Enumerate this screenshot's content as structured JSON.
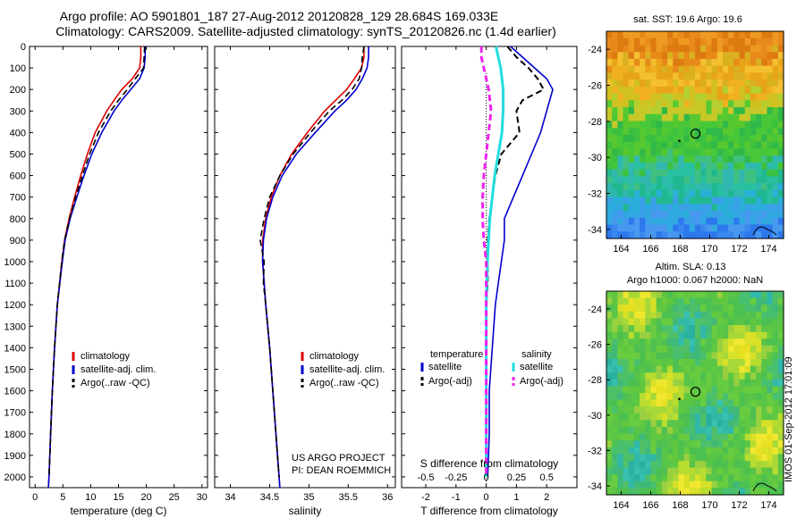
{
  "header": {
    "title_line1": "Argo profile: AO 5901801_187 27-Aug-2012 20120828_129 28.684S 169.033E",
    "title_line2": "Climatology: CARS2009. Satellite-adjusted climatology: synTS_20120826.nc (1.4d earlier)"
  },
  "side_label": "IMOS 01-Sep-2012 17:01:09",
  "colors": {
    "clim": "#dd0000",
    "sat": "#0000cc",
    "argo": "#000000",
    "sal_sat": "#22dddd",
    "sal_argo": "#ee22ee"
  },
  "chart_data": [
    {
      "type": "line",
      "panel": "temperature",
      "xlabel": "temperature (deg C)",
      "ylabel": "",
      "xlim": [
        -1,
        31
      ],
      "ylim": [
        2050,
        0
      ],
      "xticks": [
        0,
        5,
        10,
        15,
        20,
        25,
        30
      ],
      "yticks": [
        0,
        100,
        200,
        300,
        400,
        500,
        600,
        700,
        800,
        900,
        1000,
        1100,
        1200,
        1300,
        1400,
        1500,
        1600,
        1700,
        1800,
        1900,
        2000
      ],
      "legend": {
        "placement": "lower-center",
        "entries": [
          "climatology",
          "satellite-adj. clim.",
          "Argo(..raw -QC)"
        ]
      },
      "series": [
        {
          "name": "climatology",
          "y": [
            0,
            50,
            100,
            150,
            200,
            250,
            300,
            400,
            500,
            600,
            700,
            800,
            900,
            1000,
            1200,
            1400,
            1600,
            1800,
            2000,
            2050
          ],
          "values": [
            19.0,
            19.0,
            18.8,
            17.5,
            15.6,
            14.2,
            12.9,
            10.8,
            9.4,
            8.2,
            7.1,
            6.1,
            5.3,
            4.8,
            4.0,
            3.5,
            3.1,
            2.8,
            2.5,
            2.4
          ]
        },
        {
          "name": "satellite-adj. clim.",
          "y": [
            0,
            50,
            100,
            150,
            200,
            250,
            300,
            400,
            500,
            600,
            700,
            800,
            900,
            1000,
            1200,
            1400,
            1600,
            1800,
            2000,
            2050
          ],
          "values": [
            19.8,
            19.8,
            19.6,
            18.8,
            17.2,
            15.6,
            14.2,
            12.0,
            10.2,
            8.8,
            7.5,
            6.3,
            5.4,
            4.9,
            4.0,
            3.5,
            3.1,
            2.8,
            2.5,
            2.4
          ]
        },
        {
          "name": "Argo(..raw -QC)",
          "y": [
            0,
            50,
            100,
            150,
            200,
            250,
            300,
            400,
            500,
            600,
            700,
            800,
            900,
            1000,
            1200,
            1400,
            1600,
            1800,
            2000
          ],
          "values": [
            19.7,
            19.6,
            19.5,
            18.0,
            16.6,
            15.0,
            13.6,
            11.4,
            9.8,
            8.5,
            7.3,
            6.2,
            5.3,
            4.8,
            4.0,
            3.5,
            3.1,
            2.8,
            2.5
          ]
        }
      ]
    },
    {
      "type": "line",
      "panel": "salinity",
      "xlabel": "salinity",
      "ylabel": "",
      "xlim": [
        33.8,
        36.1
      ],
      "ylim": [
        2050,
        0
      ],
      "xticks": [
        34,
        34.5,
        35,
        35.5,
        36
      ],
      "annotation": [
        "US ARGO PROJECT",
        "PI: DEAN ROEMMICH"
      ],
      "legend": {
        "placement": "lower-center",
        "entries": [
          "climatology",
          "satellite-adj. clim.",
          "Argo(..raw -QC)"
        ]
      },
      "series": [
        {
          "name": "climatology",
          "y": [
            0,
            50,
            100,
            150,
            200,
            250,
            300,
            400,
            500,
            600,
            700,
            800,
            900,
            1000,
            1200,
            1400,
            1600,
            1800,
            2000,
            2050
          ],
          "values": [
            35.7,
            35.7,
            35.67,
            35.58,
            35.48,
            35.34,
            35.2,
            34.98,
            34.78,
            34.63,
            34.52,
            34.45,
            34.41,
            34.41,
            34.45,
            34.5,
            34.54,
            34.58,
            34.62,
            34.63
          ]
        },
        {
          "name": "satellite-adj. clim.",
          "y": [
            0,
            50,
            100,
            150,
            200,
            250,
            300,
            400,
            500,
            600,
            700,
            800,
            900,
            1000,
            1200,
            1400,
            1600,
            1800,
            2000,
            2050
          ],
          "values": [
            35.76,
            35.76,
            35.74,
            35.68,
            35.6,
            35.48,
            35.33,
            35.08,
            34.84,
            34.66,
            34.54,
            34.46,
            34.42,
            34.41,
            34.45,
            34.5,
            34.54,
            34.58,
            34.62,
            34.63
          ]
        },
        {
          "name": "Argo(..raw -QC)",
          "y": [
            0,
            50,
            100,
            150,
            200,
            250,
            300,
            400,
            500,
            600,
            700,
            800,
            900,
            1000,
            1100,
            1200,
            1400,
            1600,
            1800,
            2000
          ],
          "values": [
            35.7,
            35.68,
            35.67,
            35.64,
            35.55,
            35.42,
            35.26,
            35.02,
            34.8,
            34.63,
            34.5,
            34.43,
            34.38,
            34.43,
            34.42,
            34.45,
            34.5,
            34.54,
            34.58,
            34.62
          ]
        }
      ]
    },
    {
      "type": "line",
      "panel": "difference",
      "xlabel": "T difference from climatology",
      "xlabel_top": "S difference from climatology",
      "xlim": [
        -2.8,
        3.0
      ],
      "ylim": [
        2050,
        0
      ],
      "xticks": [
        -2,
        -1,
        0,
        1,
        2
      ],
      "sticks": [
        -0.5,
        -0.25,
        0,
        0.25,
        0.5
      ],
      "legend": {
        "placement": "lower-center",
        "temperature_title": "temperature",
        "salinity_title": "salinity",
        "entries": [
          "satellite",
          "Argo(-adj)",
          "satellite",
          "Argo(-adj)"
        ]
      },
      "series": [
        {
          "name": "temperature satellite",
          "y": [
            0,
            50,
            100,
            150,
            200,
            250,
            300,
            400,
            500,
            600,
            700,
            800,
            900,
            1000,
            1100,
            1200,
            1400,
            1600,
            1800,
            2000
          ],
          "values": [
            0.8,
            1.2,
            1.6,
            2.0,
            2.2,
            2.1,
            2.0,
            1.8,
            1.5,
            1.2,
            0.9,
            0.6,
            0.6,
            0.5,
            0.4,
            0.3,
            0.2,
            0.1,
            0.1,
            0.05
          ]
        },
        {
          "name": "temperature Argo(-adj)",
          "y": [
            0,
            50,
            100,
            150,
            200,
            250,
            300,
            400,
            500,
            600,
            700,
            800,
            900,
            1000,
            1100,
            1200,
            1400,
            1600,
            1800,
            2000
          ],
          "values": [
            0.7,
            1.0,
            1.4,
            1.7,
            1.9,
            1.2,
            1.0,
            1.1,
            0.5,
            0.3,
            0.2,
            0.1,
            0.05,
            0.05,
            0.05,
            0.0,
            0.0,
            0.0,
            0.0,
            0.0
          ]
        },
        {
          "name": "salinity satellite",
          "y": [
            0,
            50,
            100,
            150,
            200,
            250,
            300,
            400,
            500,
            600,
            700,
            800,
            900,
            1000,
            1200,
            1400,
            1600,
            1800,
            2000
          ],
          "values": [
            0.08,
            0.1,
            0.12,
            0.13,
            0.14,
            0.14,
            0.14,
            0.13,
            0.1,
            0.07,
            0.05,
            0.03,
            0.02,
            0.01,
            0.0,
            0.0,
            0.0,
            0.0,
            0.0
          ]
        },
        {
          "name": "salinity Argo(-adj)",
          "y": [
            0,
            50,
            100,
            150,
            200,
            250,
            300,
            400,
            500,
            600,
            700,
            800,
            900,
            1000,
            1200,
            1400,
            1600,
            1800,
            2000
          ],
          "values": [
            -0.04,
            -0.04,
            -0.02,
            0.0,
            0.02,
            0.03,
            0.04,
            0.02,
            0.0,
            -0.02,
            -0.03,
            -0.03,
            -0.02,
            0.0,
            0.0,
            0.0,
            0.0,
            0.0,
            0.0
          ]
        }
      ]
    },
    {
      "type": "heatmap",
      "panel": "sst-map",
      "title": "sat. SST: 19.6 Argo: 19.6",
      "xlim": [
        163,
        175
      ],
      "ylim": [
        -34.5,
        -23
      ],
      "xticks": [
        164,
        166,
        168,
        170,
        172,
        174
      ],
      "yticks": [
        -24,
        -26,
        -28,
        -30,
        -32,
        -34
      ],
      "argo_position": {
        "lon": 169.033,
        "lat": -28.684
      }
    },
    {
      "type": "heatmap",
      "panel": "sla-map",
      "title": "Altim. SLA: 0.13",
      "subtitle": "Argo h1000: 0.067 h2000: NaN",
      "xlim": [
        163,
        175
      ],
      "ylim": [
        -34.5,
        -23
      ],
      "xticks": [
        164,
        166,
        168,
        170,
        172,
        174
      ],
      "yticks": [
        -24,
        -26,
        -28,
        -30,
        -32,
        -34
      ],
      "argo_position": {
        "lon": 169.033,
        "lat": -28.684
      }
    }
  ]
}
